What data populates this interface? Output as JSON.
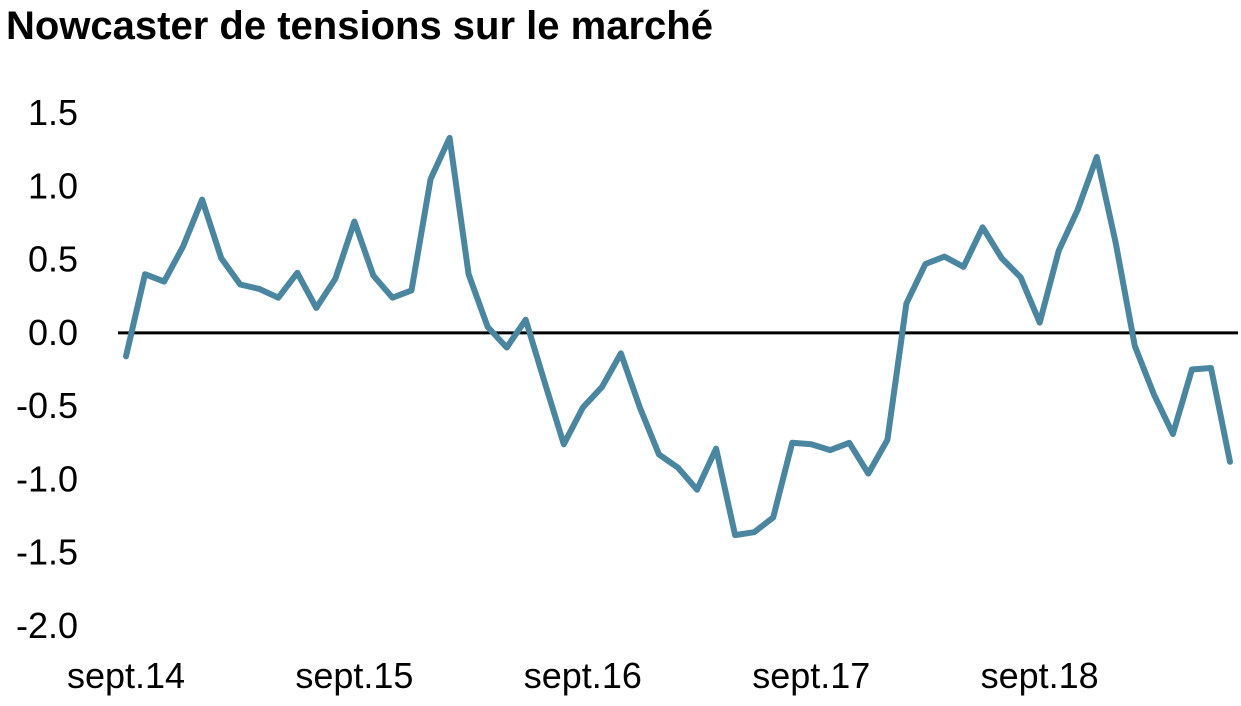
{
  "chart_data": {
    "type": "line",
    "title": "Nowcaster de tensions sur le marché",
    "xlabel": "",
    "ylabel": "",
    "x_tick_labels": [
      "sept.14",
      "sept.15",
      "sept.16",
      "sept.17",
      "sept.18"
    ],
    "x_tick_indices": [
      0,
      12,
      24,
      36,
      48
    ],
    "y_ticks": [
      1.5,
      1.0,
      0.5,
      0.0,
      -0.5,
      -1.0,
      -1.5,
      -2.0
    ],
    "y_tick_labels": [
      "1.5",
      "1.0",
      "0.5",
      "0.0",
      "-0.5",
      "-1.0",
      "-1.5",
      "-2.0"
    ],
    "ylim": [
      -2.0,
      1.5
    ],
    "zero_line": true,
    "grid": false,
    "legend": "none",
    "series": [
      {
        "color": "#4a86a0",
        "values": [
          -0.16,
          0.4,
          0.35,
          0.59,
          0.91,
          0.51,
          0.33,
          0.3,
          0.24,
          0.41,
          0.17,
          0.37,
          0.76,
          0.39,
          0.24,
          0.29,
          1.05,
          1.33,
          0.4,
          0.04,
          -0.1,
          0.09,
          -0.34,
          -0.76,
          -0.51,
          -0.37,
          -0.14,
          -0.51,
          -0.83,
          -0.92,
          -1.07,
          -0.79,
          -1.38,
          -1.36,
          -1.26,
          -0.75,
          -0.76,
          -0.8,
          -0.75,
          -0.96,
          -0.73,
          0.2,
          0.47,
          0.52,
          0.45,
          0.72,
          0.51,
          0.38,
          0.07,
          0.56,
          0.84,
          1.2,
          0.61,
          -0.09,
          -0.42,
          -0.69,
          -0.25,
          -0.24,
          -0.88
        ]
      }
    ]
  }
}
